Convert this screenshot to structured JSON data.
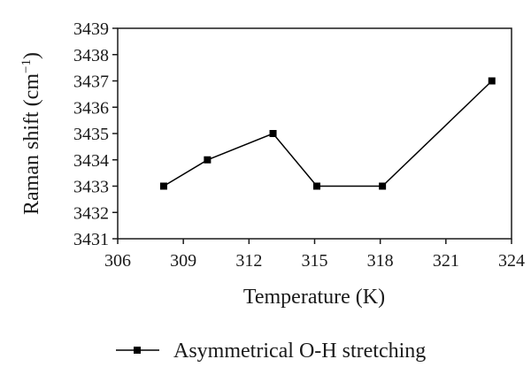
{
  "chart_data": {
    "type": "line",
    "xlabel": "Temperature (K)",
    "ylabel_main": "Raman shift (cm",
    "ylabel_sup": "−1",
    "ylabel_close": ")",
    "xlim": [
      306,
      324
    ],
    "ylim": [
      3431,
      3439
    ],
    "xticks": [
      306,
      309,
      312,
      315,
      318,
      321,
      324
    ],
    "yticks": [
      3431,
      3432,
      3433,
      3434,
      3435,
      3436,
      3437,
      3438,
      3439
    ],
    "grid": false,
    "legend_position": "bottom",
    "series": [
      {
        "name": "Asymmetrical O-H stretching",
        "marker": "square",
        "color": "#000000",
        "x": [
          308.1,
          310.1,
          313.1,
          315.1,
          318.1,
          323.1
        ],
        "y": [
          3433,
          3434,
          3435,
          3433,
          3433,
          3437
        ]
      }
    ]
  }
}
